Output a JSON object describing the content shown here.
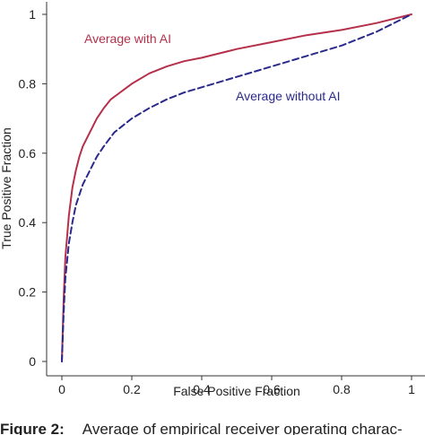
{
  "chart_data": {
    "type": "line",
    "xlabel": "False Positive Fraction",
    "ylabel": "True Positive Fraction",
    "xlim": [
      0,
      1
    ],
    "ylim": [
      0,
      1
    ],
    "xticks": [
      "0",
      "0.2",
      "0.4",
      "0.6",
      "0.8",
      "1"
    ],
    "yticks": [
      "0",
      "0.2",
      "0.4",
      "0.6",
      "0.8",
      "1"
    ],
    "grid": false,
    "legend": "inline labels",
    "series": [
      {
        "name": "Average with AI",
        "color": "#b5304a",
        "style": "solid",
        "x": [
          0,
          0.005,
          0.01,
          0.02,
          0.03,
          0.04,
          0.05,
          0.06,
          0.08,
          0.1,
          0.12,
          0.14,
          0.16,
          0.18,
          0.2,
          0.25,
          0.3,
          0.35,
          0.4,
          0.5,
          0.6,
          0.7,
          0.8,
          0.9,
          1.0
        ],
        "y": [
          0,
          0.18,
          0.3,
          0.42,
          0.5,
          0.55,
          0.59,
          0.62,
          0.66,
          0.7,
          0.73,
          0.755,
          0.77,
          0.785,
          0.8,
          0.83,
          0.85,
          0.865,
          0.875,
          0.9,
          0.92,
          0.94,
          0.955,
          0.975,
          1.0
        ]
      },
      {
        "name": "Average without AI",
        "color": "#2a2a8c",
        "style": "dashed",
        "x": [
          0,
          0.005,
          0.01,
          0.02,
          0.03,
          0.04,
          0.05,
          0.06,
          0.08,
          0.1,
          0.12,
          0.15,
          0.2,
          0.25,
          0.3,
          0.35,
          0.4,
          0.5,
          0.6,
          0.7,
          0.8,
          0.9,
          1.0
        ],
        "y": [
          0,
          0.14,
          0.24,
          0.34,
          0.4,
          0.45,
          0.48,
          0.51,
          0.55,
          0.59,
          0.62,
          0.66,
          0.7,
          0.73,
          0.755,
          0.775,
          0.79,
          0.82,
          0.85,
          0.88,
          0.91,
          0.95,
          1.0
        ]
      }
    ]
  },
  "caption": {
    "figure_label": "Figure 2:",
    "text": "Average of empirical receiver operating charac-"
  }
}
